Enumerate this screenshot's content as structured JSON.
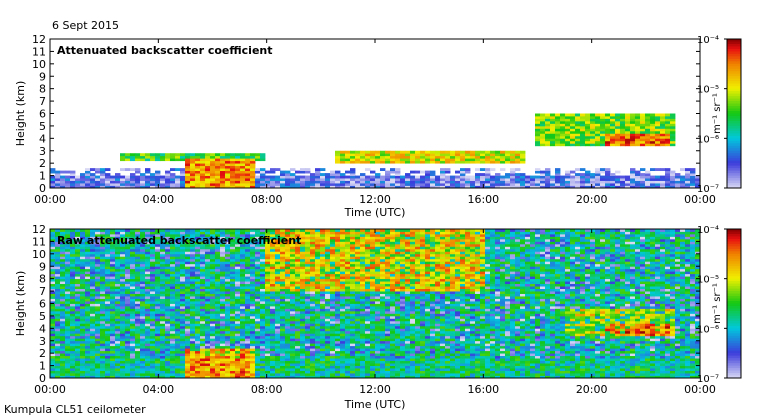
{
  "header": {
    "date": "6 Sept 2015"
  },
  "footer": {
    "instrument": "Kumpula CL51 ceilometer"
  },
  "colors": {
    "bg": "#ffffff",
    "low": "#d8d8f4",
    "blue": "#2a2ad8",
    "cyan": "#00c8d8",
    "green": "#10c810",
    "yellow": "#f0f000",
    "orange": "#f08000",
    "red": "#e81010",
    "darkred": "#800000"
  },
  "chart_data": [
    {
      "type": "heatmap",
      "title": "Attenuated backscatter coefficient",
      "xlabel": "Time (UTC)",
      "ylabel": "Height (km)",
      "x_ticks": [
        "00:00",
        "04:00",
        "08:00",
        "12:00",
        "16:00",
        "20:00",
        "00:00"
      ],
      "y_ticks": [
        "0",
        "1",
        "2",
        "3",
        "4",
        "5",
        "6",
        "7",
        "8",
        "9",
        "10",
        "11",
        "12"
      ],
      "xlim_hours": [
        0,
        24
      ],
      "ylim_km": [
        0,
        12
      ],
      "colorbar": {
        "label": "m⁻¹ sr⁻¹",
        "ticks": [
          "10⁻⁴",
          "10⁻⁵",
          "10⁻⁶",
          "10⁻⁷"
        ],
        "log_range": [
          -7,
          -4
        ]
      },
      "features": [
        {
          "name": "boundary-layer",
          "t0": 0,
          "t1": 24,
          "h0": 0,
          "h1": 1.5,
          "level": -6.6
        },
        {
          "name": "fog-layer",
          "t0": 5.0,
          "t1": 7.5,
          "h0": 0,
          "h1": 2.4,
          "level": -4.6
        },
        {
          "name": "low-cloud",
          "t0": 2.5,
          "t1": 8.0,
          "h0": 2.2,
          "h1": 2.8,
          "level": -5.5
        },
        {
          "name": "mid-cloud",
          "t0": 10.5,
          "t1": 17.5,
          "h0": 2.0,
          "h1": 3.0,
          "level": -5.0
        },
        {
          "name": "high-cloud",
          "t0": 18.0,
          "t1": 23.0,
          "h0": 3.5,
          "h1": 6.0,
          "level": -5.3
        },
        {
          "name": "cloud-core",
          "t0": 20.5,
          "t1": 22.8,
          "h0": 3.5,
          "h1": 4.3,
          "level": -4.5
        }
      ]
    },
    {
      "type": "heatmap",
      "title": "Raw attenuated backscatter coefficient",
      "xlabel": "Time (UTC)",
      "ylabel": "Height (km)",
      "x_ticks": [
        "00:00",
        "04:00",
        "08:00",
        "12:00",
        "16:00",
        "20:00",
        "00:00"
      ],
      "y_ticks": [
        "0",
        "1",
        "2",
        "3",
        "4",
        "5",
        "6",
        "7",
        "8",
        "9",
        "10",
        "11",
        "12"
      ],
      "xlim_hours": [
        0,
        24
      ],
      "ylim_km": [
        0,
        12
      ],
      "colorbar": {
        "label": "m⁻¹ sr⁻¹",
        "ticks": [
          "10⁻⁴",
          "10⁻⁵",
          "10⁻⁶",
          "10⁻⁷"
        ],
        "log_range": [
          -7,
          -4
        ]
      },
      "features": [
        {
          "name": "noise-field",
          "t0": 0,
          "t1": 24,
          "h0": 0,
          "h1": 12,
          "level": -5.8
        },
        {
          "name": "noise-peak",
          "t0": 8.0,
          "t1": 16.0,
          "h0": 7.0,
          "h1": 12,
          "level": -4.8
        },
        {
          "name": "fog-layer",
          "t0": 5.0,
          "t1": 7.5,
          "h0": 0,
          "h1": 2.4,
          "level": -4.6
        },
        {
          "name": "high-cloud",
          "t0": 19.0,
          "t1": 23.0,
          "h0": 3.5,
          "h1": 5.5,
          "level": -5.0
        },
        {
          "name": "cloud-core",
          "t0": 20.5,
          "t1": 22.8,
          "h0": 3.5,
          "h1": 4.3,
          "level": -4.5
        }
      ]
    }
  ]
}
